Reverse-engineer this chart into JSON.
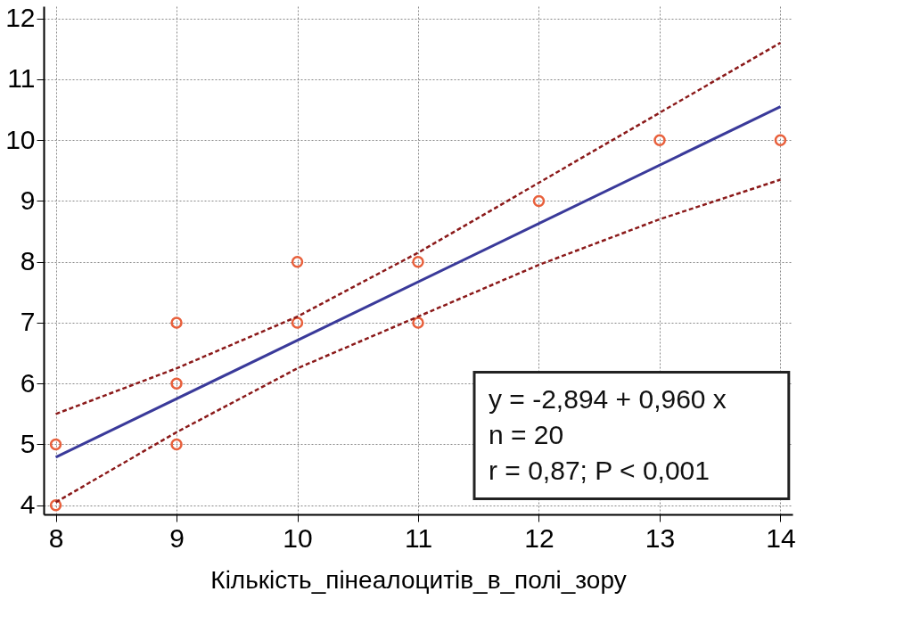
{
  "chart_data": {
    "type": "scatter",
    "xlabel": "Кількість_пінеалоцитів_в_полі_зору",
    "xlim": [
      7.9,
      14.1
    ],
    "xticks": [
      8,
      9,
      10,
      11,
      12,
      13,
      14
    ],
    "ylim": [
      3.85,
      12.2
    ],
    "yticks": [
      4,
      5,
      6,
      7,
      8,
      9,
      10,
      11,
      12
    ],
    "grid": true,
    "series": [
      {
        "color": "#e8603c",
        "marker": "circle",
        "x": [
          8,
          8,
          9,
          9,
          9,
          10,
          10,
          11,
          11,
          12,
          13,
          14
        ],
        "values": [
          4,
          5,
          5,
          6,
          7,
          7,
          8,
          7,
          8,
          9,
          10,
          10
        ]
      },
      {
        "type": "line",
        "color": "#8b1a1a",
        "line_style": "dashed",
        "marker": "none",
        "x": [
          8,
          9,
          10,
          11,
          12,
          13,
          14
        ],
        "values": [
          5.5,
          6.25,
          7.1,
          8.15,
          9.3,
          10.45,
          11.6
        ]
      },
      {
        "type": "line",
        "color": "#3a3a9a",
        "line_style": "solid",
        "marker": "none",
        "x": [
          8,
          14
        ],
        "values": [
          4.79,
          10.55
        ]
      },
      {
        "type": "line",
        "color": "#8b1a1a",
        "line_style": "dashed",
        "marker": "none",
        "x": [
          8,
          9,
          10,
          11,
          12,
          13,
          14
        ],
        "values": [
          4.05,
          5.2,
          6.25,
          7.1,
          7.95,
          8.7,
          9.35
        ]
      }
    ],
    "annotations": [
      "y = -2,894  +  0,960  x",
      "n = 20",
      "r = 0,87; P < 0,001"
    ]
  }
}
